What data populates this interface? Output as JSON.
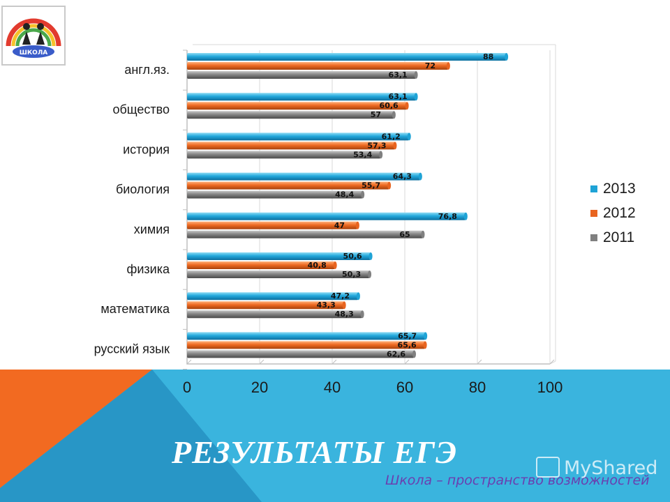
{
  "slide": {
    "title": "РЕЗУЛЬТАТЫ ЕГЭ",
    "subtitle": "Школа – пространство возможностей",
    "watermark": "MyShared",
    "logo_text": "ШКОЛА",
    "colors": {
      "orange": "#f26a21",
      "blue": "#3ab4de",
      "blue_dark": "#2493c6",
      "white": "#ffffff"
    }
  },
  "chart_data": {
    "type": "bar",
    "orientation": "horizontal",
    "categories": [
      "англ.яз.",
      "общество",
      "история",
      "биология",
      "химия",
      "физика",
      "математика",
      "русский язык"
    ],
    "series": [
      {
        "name": "2013",
        "color": "#1ea3d6",
        "values": [
          88,
          63.1,
          61.2,
          64.3,
          76.8,
          50.6,
          47.2,
          65.7
        ]
      },
      {
        "name": "2012",
        "color": "#e8641f",
        "values": [
          72,
          60.6,
          57.3,
          55.7,
          47,
          40.8,
          43.3,
          65.6
        ]
      },
      {
        "name": "2011",
        "color": "#808080",
        "values": [
          63.1,
          57,
          53.4,
          48.4,
          65,
          50.3,
          48.3,
          62.6
        ]
      }
    ],
    "data_labels": [
      [
        "88",
        "63,1",
        "61,2",
        "64,3",
        "76,8",
        "50,6",
        "47,2",
        "65,7"
      ],
      [
        "72",
        "60,6",
        "57,3",
        "55,7",
        "47",
        "40,8",
        "43,3",
        "65,6"
      ],
      [
        "63,1",
        "57",
        "53,4",
        "48,4",
        "65",
        "50,3",
        "48,3",
        "62,6"
      ]
    ],
    "xlim": [
      0,
      100
    ],
    "xticks": [
      "0",
      "20",
      "40",
      "60",
      "80",
      "100"
    ],
    "legend": [
      "2013",
      "2012",
      "2011"
    ],
    "legend_position": "right",
    "grid": true
  }
}
